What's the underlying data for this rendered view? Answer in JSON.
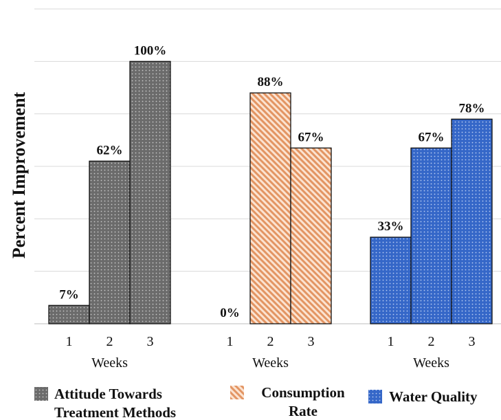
{
  "chart_data": {
    "type": "bar",
    "ylabel": "Percent Improvement",
    "ylim": [
      0,
      120
    ],
    "gridlines": [
      0,
      20,
      40,
      60,
      80,
      100,
      120
    ],
    "y_tick_labels_shown": false,
    "grid": true,
    "legend_position": "bottom",
    "groups": [
      {
        "name": "Attitude Towards Treatment Methods",
        "legend_lines": [
          "Attitude Towards",
          "Treatment Methods"
        ],
        "xlabel": "Weeks",
        "categories": [
          "1",
          "2",
          "3"
        ],
        "values": [
          7,
          62,
          100
        ],
        "labels": [
          "7%",
          "62%",
          "100%"
        ],
        "color": "#6b6b6b",
        "pattern": "dots-dark"
      },
      {
        "name": "Consumption Rate",
        "legend_lines": [
          "Consumption",
          "Rate"
        ],
        "xlabel": "Weeks",
        "categories": [
          "1",
          "2",
          "3"
        ],
        "values": [
          0,
          88,
          67
        ],
        "labels": [
          "0%",
          "88%",
          "67%"
        ],
        "color": "#e8a47a",
        "pattern": "diagonal-stripes"
      },
      {
        "name": "Water Quality",
        "legend_lines": [
          "Water Quality"
        ],
        "xlabel": "Weeks",
        "categories": [
          "1",
          "2",
          "3"
        ],
        "values": [
          33,
          67,
          78
        ],
        "labels": [
          "33%",
          "67%",
          "78%"
        ],
        "color": "#3f6fcf",
        "pattern": "dots-light"
      }
    ]
  }
}
